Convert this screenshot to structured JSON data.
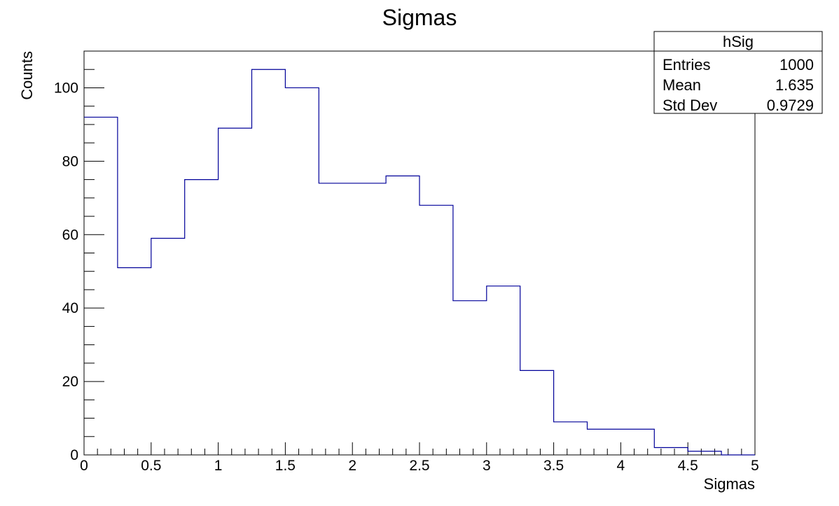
{
  "chart_data": {
    "type": "histogram",
    "title": "Sigmas",
    "xlabel": "Sigmas",
    "ylabel": "Counts",
    "xlim": [
      0,
      5
    ],
    "ylim": [
      0,
      110
    ],
    "bin_width": 0.25,
    "bin_edges": [
      0,
      0.25,
      0.5,
      0.75,
      1.0,
      1.25,
      1.5,
      1.75,
      2.0,
      2.25,
      2.5,
      2.75,
      3.0,
      3.25,
      3.5,
      3.75,
      4.0,
      4.25,
      4.5,
      4.75,
      5.0
    ],
    "values": [
      92,
      51,
      59,
      75,
      89,
      105,
      100,
      74,
      74,
      76,
      68,
      42,
      46,
      23,
      9,
      7,
      7,
      2,
      1,
      0
    ],
    "x_ticks": [
      "0",
      "0.5",
      "1",
      "1.5",
      "2",
      "2.5",
      "3",
      "3.5",
      "4",
      "4.5",
      "5"
    ],
    "y_ticks": [
      "0",
      "20",
      "40",
      "60",
      "80",
      "100"
    ],
    "line_color": "#000099",
    "grid": false,
    "stats_box": {
      "name": "hSig",
      "rows": [
        {
          "label": "Entries",
          "value": "1000"
        },
        {
          "label": "Mean",
          "value": "1.635"
        },
        {
          "label": "Std Dev",
          "value": "0.9729"
        }
      ],
      "placement": "top-right"
    }
  }
}
